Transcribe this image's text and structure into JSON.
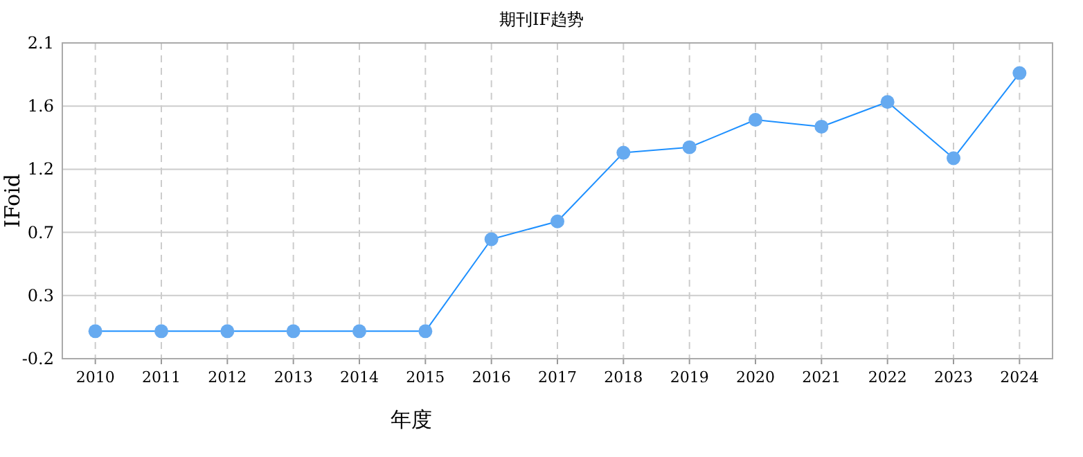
{
  "chart_data": {
    "type": "line",
    "title": "期刊IF趋势",
    "xlabel": "年度",
    "ylabel": "IFoid",
    "categories": [
      "2010",
      "2011",
      "2012",
      "2013",
      "2014",
      "2015",
      "2016",
      "2017",
      "2018",
      "2019",
      "2020",
      "2021",
      "2022",
      "2023",
      "2024"
    ],
    "series": [
      {
        "color": "#1e90ff",
        "values": [
          0,
          0,
          0,
          0,
          0,
          0,
          0.67,
          0.8,
          1.3,
          1.34,
          1.54,
          1.49,
          1.67,
          1.26,
          1.88
        ]
      }
    ],
    "ylim": [
      -0.2,
      2.1
    ],
    "yticks": [
      -0.2,
      {
        "value": 0.26,
        "label": "0.3"
      },
      {
        "value": 0.72,
        "label": "0.7"
      },
      {
        "value": 1.18,
        "label": "1.2"
      },
      {
        "value": 1.64,
        "label": "1.6"
      },
      2.1
    ],
    "grid": true,
    "marker": "circle",
    "line_style": "solid"
  }
}
